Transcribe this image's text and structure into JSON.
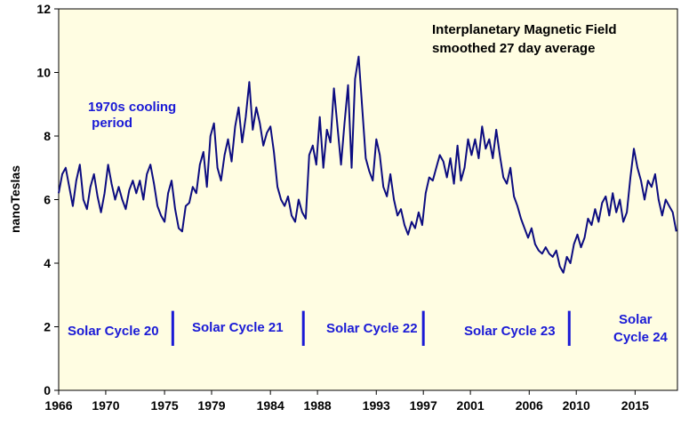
{
  "chart_data": {
    "type": "line",
    "title_lines": [
      "Interplanetary  Magnetic  Field",
      "smoothed 27 day average"
    ],
    "xlabel": "",
    "ylabel": "nanoTeslas",
    "xlim": [
      1966,
      2018.6
    ],
    "ylim": [
      0,
      12
    ],
    "x_ticks": [
      1966,
      1970,
      1975,
      1979,
      1984,
      1988,
      1993,
      1997,
      2001,
      2006,
      2010,
      2015
    ],
    "y_ticks": [
      0,
      2,
      4,
      6,
      8,
      10,
      12
    ],
    "grid": false,
    "colors": {
      "line": "#0c0c80",
      "plot_bg": "#fffde2",
      "annotation": "#1a1ad6",
      "divider": "#1a1ad6"
    },
    "annotations": [
      {
        "lines": [
          "1970s cooling",
          " period"
        ]
      },
      {
        "lines": [
          "Solar Cycle 20"
        ]
      },
      {
        "lines": [
          "Solar Cycle 21"
        ]
      },
      {
        "lines": [
          "Solar Cycle 22"
        ]
      },
      {
        "lines": [
          "Solar Cycle 23"
        ]
      },
      {
        "lines": [
          "Solar",
          "Cycle 24"
        ]
      }
    ],
    "cycle_dividers": [
      1975.7,
      1986.8,
      1997.0,
      2009.4
    ],
    "series": [
      {
        "x": [
          1966.0,
          1966.3,
          1966.6,
          1966.9,
          1967.2,
          1967.5,
          1967.8,
          1968.1,
          1968.4,
          1968.7,
          1969.0,
          1969.3,
          1969.6,
          1969.9,
          1970.2,
          1970.5,
          1970.8,
          1971.1,
          1971.4,
          1971.7,
          1972.0,
          1972.3,
          1972.6,
          1972.9,
          1973.2,
          1973.5,
          1973.8,
          1974.1,
          1974.4,
          1974.7,
          1975.0,
          1975.3,
          1975.6,
          1975.9,
          1976.2,
          1976.5,
          1976.8,
          1977.1,
          1977.4,
          1977.7,
          1978.0,
          1978.3,
          1978.6,
          1978.9,
          1979.2,
          1979.5,
          1979.8,
          1980.1,
          1980.4,
          1980.7,
          1981.0,
          1981.3,
          1981.6,
          1981.9,
          1982.2,
          1982.5,
          1982.8,
          1983.1,
          1983.4,
          1983.7,
          1984.0,
          1984.3,
          1984.6,
          1984.9,
          1985.2,
          1985.5,
          1985.8,
          1986.1,
          1986.4,
          1986.7,
          1987.0,
          1987.3,
          1987.6,
          1987.9,
          1988.2,
          1988.5,
          1988.8,
          1989.1,
          1989.4,
          1989.7,
          1990.0,
          1990.3,
          1990.6,
          1990.9,
          1991.2,
          1991.5,
          1991.8,
          1992.1,
          1992.4,
          1992.7,
          1993.0,
          1993.3,
          1993.6,
          1993.9,
          1994.2,
          1994.5,
          1994.8,
          1995.1,
          1995.4,
          1995.7,
          1996.0,
          1996.3,
          1996.6,
          1996.9,
          1997.2,
          1997.5,
          1997.8,
          1998.1,
          1998.4,
          1998.7,
          1999.0,
          1999.3,
          1999.6,
          1999.9,
          2000.2,
          2000.5,
          2000.8,
          2001.1,
          2001.4,
          2001.7,
          2002.0,
          2002.3,
          2002.6,
          2002.9,
          2003.2,
          2003.5,
          2003.8,
          2004.1,
          2004.4,
          2004.7,
          2005.0,
          2005.3,
          2005.6,
          2005.9,
          2006.2,
          2006.5,
          2006.8,
          2007.1,
          2007.4,
          2007.7,
          2008.0,
          2008.3,
          2008.6,
          2008.9,
          2009.2,
          2009.5,
          2009.8,
          2010.1,
          2010.4,
          2010.7,
          2011.0,
          2011.3,
          2011.6,
          2011.9,
          2012.2,
          2012.5,
          2012.8,
          2013.1,
          2013.4,
          2013.7,
          2014.0,
          2014.3,
          2014.6,
          2014.9,
          2015.2,
          2015.5,
          2015.8,
          2016.1,
          2016.4,
          2016.7,
          2017.0,
          2017.3,
          2017.6,
          2017.9,
          2018.2,
          2018.5
        ],
        "values": [
          6.2,
          6.8,
          7.0,
          6.4,
          5.8,
          6.6,
          7.1,
          6.0,
          5.7,
          6.4,
          6.8,
          6.1,
          5.6,
          6.2,
          7.1,
          6.5,
          6.0,
          6.4,
          6.0,
          5.7,
          6.3,
          6.6,
          6.2,
          6.6,
          6.0,
          6.8,
          7.1,
          6.5,
          5.8,
          5.5,
          5.3,
          6.2,
          6.6,
          5.7,
          5.1,
          5.0,
          5.8,
          5.9,
          6.4,
          6.2,
          7.1,
          7.5,
          6.4,
          8.0,
          8.4,
          7.0,
          6.6,
          7.4,
          7.9,
          7.2,
          8.3,
          8.9,
          7.8,
          8.6,
          9.7,
          8.2,
          8.9,
          8.4,
          7.7,
          8.1,
          8.3,
          7.5,
          6.4,
          6.0,
          5.8,
          6.1,
          5.5,
          5.3,
          6.0,
          5.6,
          5.4,
          7.4,
          7.7,
          7.1,
          8.6,
          7.0,
          8.2,
          7.8,
          9.5,
          8.3,
          7.1,
          8.4,
          9.6,
          7.0,
          9.8,
          10.5,
          8.9,
          7.3,
          6.9,
          6.6,
          7.9,
          7.4,
          6.4,
          6.1,
          6.8,
          6.0,
          5.5,
          5.7,
          5.2,
          4.9,
          5.3,
          5.1,
          5.6,
          5.2,
          6.2,
          6.7,
          6.6,
          7.0,
          7.4,
          7.2,
          6.7,
          7.3,
          6.5,
          7.7,
          6.6,
          7.0,
          7.9,
          7.4,
          7.9,
          7.3,
          8.3,
          7.6,
          7.9,
          7.3,
          8.2,
          7.4,
          6.7,
          6.5,
          7.0,
          6.1,
          5.8,
          5.4,
          5.1,
          4.8,
          5.1,
          4.6,
          4.4,
          4.3,
          4.5,
          4.3,
          4.2,
          4.4,
          3.9,
          3.7,
          4.2,
          4.0,
          4.6,
          4.9,
          4.5,
          4.8,
          5.4,
          5.2,
          5.7,
          5.3,
          5.9,
          6.1,
          5.5,
          6.2,
          5.6,
          6.0,
          5.3,
          5.6,
          6.7,
          7.6,
          7.0,
          6.6,
          6.0,
          6.6,
          6.4,
          6.8,
          6.0,
          5.5,
          6.0,
          5.8,
          5.6,
          5.0
        ]
      }
    ]
  }
}
